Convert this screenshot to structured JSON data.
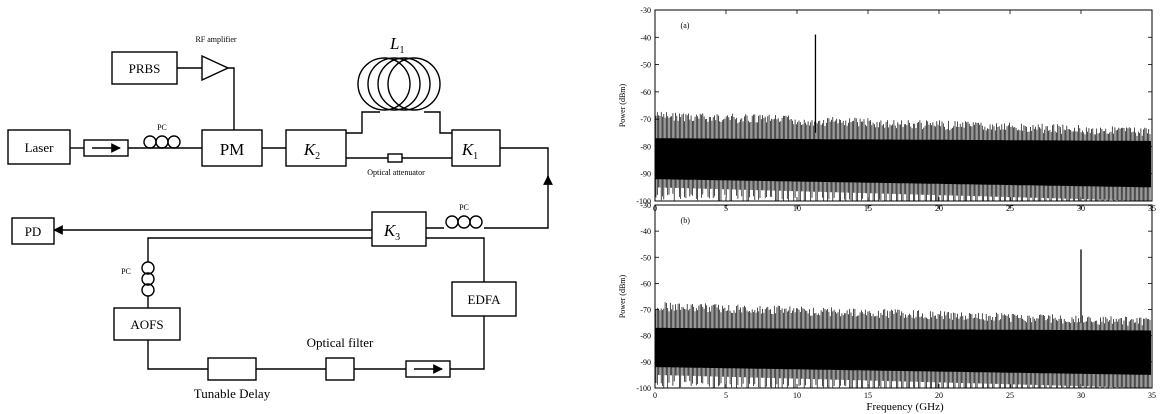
{
  "diagram": {
    "laser": "Laser",
    "prbs": "PRBS",
    "rf_amplifier": "RF amplifier",
    "pm": "PM",
    "k2_base": "K",
    "k2_sub": "2",
    "k1_base": "K",
    "k1_sub": "1",
    "k3_base": "K",
    "k3_sub": "3",
    "l1_base": "L",
    "l1_sub": "1",
    "optical_attenuator": "Optical attenuator",
    "pc_top": "PC",
    "pc_right": "PC",
    "pc_left": "PC",
    "pd": "PD",
    "edfa": "EDFA",
    "aofs": "AOFS",
    "tunable_delay": "Tunable Delay",
    "optical_filter": "Optical filter"
  },
  "chart_data": [
    {
      "type": "line",
      "panel_label": "(a)",
      "xlabel": "",
      "ylabel": "Power (dBm)",
      "xlim": [
        0,
        35
      ],
      "ylim": [
        -100,
        -30
      ],
      "xticks": [
        "0",
        "5",
        "10",
        "15",
        "20",
        "25",
        "30",
        "35"
      ],
      "yticks": [
        "-30",
        "-40",
        "-50",
        "-60",
        "-70",
        "-80",
        "-90",
        "-100"
      ],
      "noise_floor": {
        "top_start": -67,
        "top_end": -73,
        "bottom_start": -95,
        "bottom_end": -100
      },
      "peak": {
        "x": 11.3,
        "y": -39
      }
    },
    {
      "type": "line",
      "panel_label": "(b)",
      "xlabel": "Frequency (GHz)",
      "ylabel": "Power (dBm)",
      "xlim": [
        0,
        35
      ],
      "ylim": [
        -100,
        -30
      ],
      "xticks": [
        "0",
        "5",
        "10",
        "15",
        "20",
        "25",
        "30",
        "35"
      ],
      "yticks": [
        "-30",
        "-40",
        "-50",
        "-60",
        "-70",
        "-80",
        "-90",
        "-100"
      ],
      "noise_floor": {
        "top_start": -67,
        "top_end": -73,
        "bottom_start": -95,
        "bottom_end": -100
      },
      "peak": {
        "x": 30,
        "y": -47
      }
    }
  ]
}
